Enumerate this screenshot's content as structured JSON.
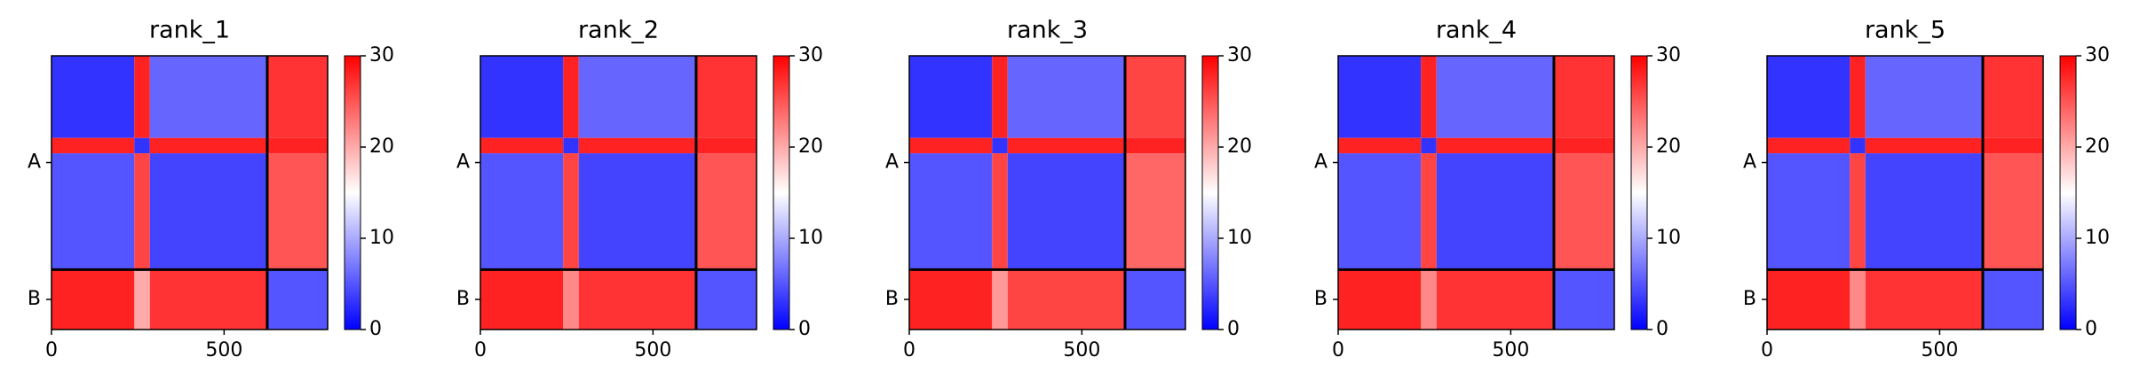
{
  "chart_data": [
    {
      "type": "heatmap",
      "title": "rank_1",
      "colormap": "bwr",
      "edges": [
        0,
        240,
        285,
        625,
        800
      ],
      "matrix": [
        [
          3,
          28,
          6,
          27
        ],
        [
          28,
          3,
          28,
          28
        ],
        [
          5,
          26,
          4,
          25
        ],
        [
          28,
          20,
          27,
          5
        ]
      ],
      "chain_breaks": [
        625
      ],
      "xlim": [
        0,
        800
      ],
      "xticks": [
        0,
        500
      ],
      "ylim": [
        800,
        0
      ],
      "yticks": [
        {
          "value": 312,
          "label": "A"
        },
        {
          "value": 712,
          "label": "B"
        }
      ],
      "clim": [
        0,
        30
      ],
      "cticks": [
        0,
        10,
        20,
        30
      ]
    },
    {
      "type": "heatmap",
      "title": "rank_2",
      "colormap": "bwr",
      "edges": [
        0,
        240,
        285,
        625,
        800
      ],
      "matrix": [
        [
          3,
          28,
          6,
          27
        ],
        [
          28,
          3,
          28,
          28
        ],
        [
          5,
          26,
          4,
          25
        ],
        [
          28,
          22,
          27,
          5
        ]
      ],
      "chain_breaks": [
        625
      ],
      "xlim": [
        0,
        800
      ],
      "xticks": [
        0,
        500
      ],
      "ylim": [
        800,
        0
      ],
      "yticks": [
        {
          "value": 312,
          "label": "A"
        },
        {
          "value": 712,
          "label": "B"
        }
      ],
      "clim": [
        0,
        30
      ],
      "cticks": [
        0,
        10,
        20,
        30
      ]
    },
    {
      "type": "heatmap",
      "title": "rank_3",
      "colormap": "bwr",
      "edges": [
        0,
        240,
        285,
        625,
        800
      ],
      "matrix": [
        [
          3,
          28,
          6,
          26
        ],
        [
          28,
          3,
          28,
          28
        ],
        [
          5,
          26,
          4,
          24
        ],
        [
          28,
          21,
          26,
          5
        ]
      ],
      "chain_breaks": [
        625
      ],
      "xlim": [
        0,
        800
      ],
      "xticks": [
        0,
        500
      ],
      "ylim": [
        800,
        0
      ],
      "yticks": [
        {
          "value": 312,
          "label": "A"
        },
        {
          "value": 712,
          "label": "B"
        }
      ],
      "clim": [
        0,
        30
      ],
      "cticks": [
        0,
        10,
        20,
        30
      ]
    },
    {
      "type": "heatmap",
      "title": "rank_4",
      "colormap": "bwr",
      "edges": [
        0,
        240,
        285,
        625,
        800
      ],
      "matrix": [
        [
          3,
          28,
          6,
          27
        ],
        [
          28,
          3,
          28,
          28
        ],
        [
          5,
          26,
          4,
          25
        ],
        [
          28,
          22,
          27,
          5
        ]
      ],
      "chain_breaks": [
        625
      ],
      "xlim": [
        0,
        800
      ],
      "xticks": [
        0,
        500
      ],
      "ylim": [
        800,
        0
      ],
      "yticks": [
        {
          "value": 312,
          "label": "A"
        },
        {
          "value": 712,
          "label": "B"
        }
      ],
      "clim": [
        0,
        30
      ],
      "cticks": [
        0,
        10,
        20,
        30
      ]
    },
    {
      "type": "heatmap",
      "title": "rank_5",
      "colormap": "bwr",
      "edges": [
        0,
        240,
        285,
        625,
        800
      ],
      "matrix": [
        [
          3,
          28,
          6,
          27
        ],
        [
          28,
          3,
          28,
          28
        ],
        [
          5,
          26,
          4,
          25
        ],
        [
          28,
          22,
          27,
          5
        ]
      ],
      "chain_breaks": [
        625
      ],
      "xlim": [
        0,
        800
      ],
      "xticks": [
        0,
        500
      ],
      "ylim": [
        800,
        0
      ],
      "yticks": [
        {
          "value": 312,
          "label": "A"
        },
        {
          "value": 712,
          "label": "B"
        }
      ],
      "clim": [
        0,
        30
      ],
      "cticks": [
        0,
        10,
        20,
        30
      ]
    }
  ]
}
